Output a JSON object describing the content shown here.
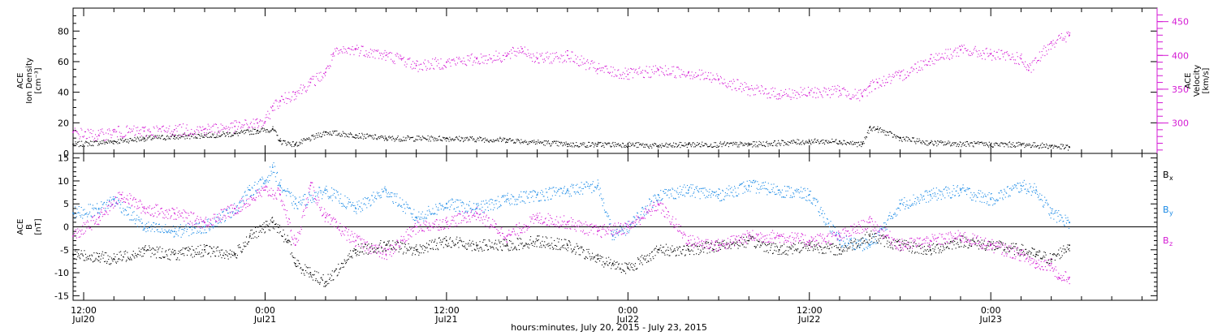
{
  "colors": {
    "black": "#000000",
    "magenta": "#d41ad4",
    "blue": "#1a8ae6",
    "frame": "#000000"
  },
  "x_axis": {
    "label": "hours:minutes, July 20, 2015 - July 23, 2015",
    "ticks": [
      {
        "t": 0,
        "time": "12:00",
        "date": "Jul20"
      },
      {
        "t": 12,
        "time": "0:00",
        "date": "Jul21"
      },
      {
        "t": 24,
        "time": "12:00",
        "date": "Jul21"
      },
      {
        "t": 36,
        "time": "0:00",
        "date": "Jul22"
      },
      {
        "t": 48,
        "time": "12:00",
        "date": "Jul22"
      },
      {
        "t": 60,
        "time": "0:00",
        "date": "Jul23"
      }
    ],
    "range_hours": [
      -0.7,
      71.0
    ]
  },
  "chart_data": [
    {
      "type": "scatter",
      "panel": "top",
      "ylabel_left": [
        "ACE",
        "Ion Density",
        "[cm⁻³]"
      ],
      "ylabel_right": [
        "ACE",
        "Velocity",
        "[km/s]"
      ],
      "yticks_left": [
        "0",
        "20",
        "40",
        "60",
        "80"
      ],
      "ylim_left": [
        0,
        95
      ],
      "yticks_right": [
        "300",
        "350",
        "400",
        "450"
      ],
      "ylim_right": [
        255,
        470
      ],
      "series": [
        {
          "name": "ACE Ion Density",
          "axis": "left",
          "color": "black",
          "x": [
            -0.7,
            2,
            4,
            6,
            8,
            10,
            11.5,
            12.5,
            13,
            14,
            16,
            18,
            20,
            24,
            28,
            32,
            34,
            36,
            38,
            40,
            44,
            48,
            50,
            51.5,
            52,
            52.5,
            54,
            56,
            60,
            62,
            64,
            65.2
          ],
          "y": [
            6,
            8,
            10,
            11,
            12,
            13,
            15,
            16,
            8,
            6,
            14,
            12,
            10,
            10,
            9,
            6,
            6,
            6,
            5,
            6,
            6,
            8,
            8,
            6,
            17,
            16,
            10,
            7,
            6,
            6,
            5,
            4
          ]
        },
        {
          "name": "ACE Velocity",
          "axis": "right",
          "color": "magenta",
          "x": [
            -0.7,
            1,
            2,
            4,
            6,
            8,
            10,
            11.5,
            12,
            12.5,
            13,
            14,
            15,
            16,
            16.5,
            18,
            20,
            21,
            22,
            24,
            26,
            28,
            29,
            30,
            32,
            34,
            36,
            38,
            40,
            42,
            44,
            46,
            48,
            50,
            51.5,
            52,
            52.5,
            54,
            56,
            58,
            60,
            62,
            62.5,
            64,
            65.2
          ],
          "y": [
            286,
            282,
            287,
            288,
            290,
            291,
            295,
            300,
            302,
            325,
            333,
            345,
            360,
            375,
            402,
            410,
            400,
            395,
            385,
            390,
            395,
            400,
            410,
            395,
            400,
            380,
            372,
            378,
            375,
            365,
            350,
            343,
            345,
            348,
            340,
            355,
            360,
            370,
            395,
            408,
            402,
            395,
            378,
            420,
            430
          ]
        }
      ]
    },
    {
      "type": "scatter",
      "panel": "bottom",
      "ylabel_left": [
        "ACE",
        "B",
        "[nT]"
      ],
      "yticks": [
        "-15",
        "-10",
        "-5",
        "0",
        "5",
        "10",
        "15"
      ],
      "ylim": [
        -16,
        16
      ],
      "zero_line": true,
      "series": [
        {
          "name": "Bx",
          "color": "black",
          "x": [
            -0.7,
            1,
            2,
            4,
            6,
            8,
            10,
            11,
            12,
            12.5,
            13.5,
            14,
            15,
            16,
            18,
            20,
            22,
            24,
            26,
            28,
            30,
            32,
            34,
            35,
            36,
            38,
            40,
            42,
            44,
            46,
            48,
            50,
            52,
            54,
            56,
            58,
            60,
            62,
            63,
            64,
            65.2
          ],
          "y": [
            -6,
            -6.5,
            -7,
            -5,
            -6,
            -5,
            -6,
            -2,
            0,
            1,
            -3,
            -8,
            -10,
            -12,
            -5,
            -4,
            -5,
            -3,
            -4,
            -4,
            -3,
            -4,
            -7,
            -8,
            -9,
            -5,
            -5,
            -4,
            -3,
            -5,
            -4,
            -5,
            -2,
            -4,
            -5,
            -3,
            -4,
            -5,
            -6,
            -7,
            -4
          ]
        },
        {
          "name": "By",
          "color": "blue",
          "x": [
            -0.7,
            1,
            2,
            4,
            6,
            8,
            10,
            11,
            12,
            12.5,
            13,
            14,
            16,
            18,
            20,
            22,
            24,
            26,
            28,
            30,
            32,
            34,
            35,
            36,
            38,
            40,
            42,
            44,
            46,
            48,
            50,
            52,
            54,
            56,
            58,
            60,
            62,
            63,
            64,
            65.2
          ],
          "y": [
            3,
            4,
            6,
            0,
            -1,
            0,
            4,
            8,
            10,
            13,
            9,
            5,
            8,
            4,
            8,
            2,
            5,
            4,
            6,
            7,
            8,
            9,
            -2,
            0,
            7,
            8,
            7,
            9,
            8,
            7,
            -3,
            -4,
            5,
            7,
            8,
            6,
            9,
            8,
            3,
            1
          ]
        },
        {
          "name": "Bz",
          "color": "magenta",
          "x": [
            -0.7,
            1,
            2.5,
            4,
            6,
            8,
            10,
            12,
            13,
            14,
            15,
            16,
            18,
            20,
            22,
            24,
            26,
            28,
            30,
            32,
            34,
            36,
            38,
            40,
            42,
            44,
            46,
            48,
            50,
            52,
            54,
            56,
            58,
            60,
            62,
            63,
            64,
            64.5,
            65.2
          ],
          "y": [
            -2,
            2,
            7,
            4,
            3,
            1,
            4,
            8,
            7,
            -4,
            9,
            2,
            -3,
            -6,
            0,
            1,
            3,
            -2,
            2,
            1,
            -1,
            0,
            5,
            -3,
            -4,
            -2,
            -2,
            -3,
            -2,
            1,
            -4,
            -3,
            -2,
            -4,
            -6,
            -8,
            -8,
            -11,
            -11
          ]
        }
      ],
      "legend": [
        {
          "base": "B",
          "sub": "x",
          "color": "black"
        },
        {
          "base": "B",
          "sub": "y",
          "color": "blue"
        },
        {
          "base": "B",
          "sub": "z",
          "color": "magenta"
        }
      ]
    }
  ]
}
